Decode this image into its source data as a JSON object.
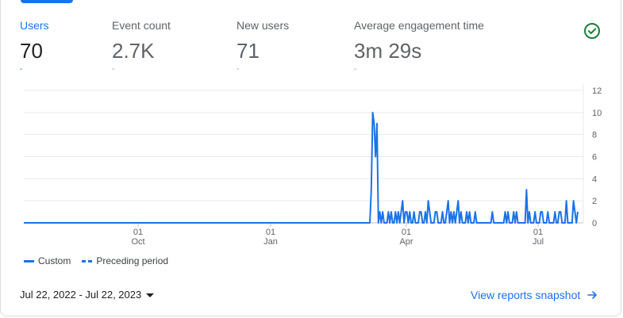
{
  "metrics": [
    {
      "label": "Users",
      "value": "70",
      "delta": "-"
    },
    {
      "label": "Event count",
      "value": "2.7K",
      "delta": "-"
    },
    {
      "label": "New users",
      "value": "71",
      "delta": "-"
    },
    {
      "label": "Average engagement time",
      "value": "3m 29s",
      "delta": "-"
    }
  ],
  "status_icon": "check-circle-icon",
  "colors": {
    "accent": "#1a73e8",
    "check": "#188038",
    "grid": "#e8eaed",
    "axis": "#5f6368"
  },
  "legend": {
    "custom": "Custom",
    "preceding": "Preceding period"
  },
  "date_range": {
    "label": "Jul 22, 2022 - Jul 22, 2023"
  },
  "view_link": {
    "label": "View reports snapshot"
  },
  "chart_data": {
    "type": "line",
    "x_ticks": [
      {
        "day": "01",
        "month": "Oct"
      },
      {
        "day": "01",
        "month": "Jan"
      },
      {
        "day": "01",
        "month": "Apr"
      },
      {
        "day": "01",
        "month": "Jul"
      }
    ],
    "y_ticks": [
      0,
      2,
      4,
      6,
      8,
      10,
      12
    ],
    "ylim": [
      0,
      12
    ],
    "grid": true,
    "series": [
      {
        "name": "Custom",
        "style": "solid",
        "values": [
          0,
          0,
          0,
          0,
          0,
          0,
          0,
          0,
          0,
          0,
          0,
          0,
          0,
          0,
          0,
          0,
          0,
          0,
          0,
          0,
          0,
          0,
          0,
          0,
          0,
          0,
          0,
          0,
          0,
          0,
          0,
          0,
          0,
          0,
          0,
          0,
          0,
          0,
          0,
          0,
          0,
          0,
          0,
          0,
          0,
          0,
          0,
          0,
          0,
          0,
          0,
          0,
          0,
          0,
          0,
          0,
          0,
          0,
          0,
          0,
          0,
          0,
          0,
          0,
          0,
          0,
          0,
          0,
          0,
          0,
          0,
          0,
          0,
          0,
          0,
          0,
          0,
          0,
          0,
          0,
          0,
          0,
          0,
          0,
          0,
          0,
          0,
          0,
          0,
          0,
          0,
          0,
          0,
          0,
          0,
          0,
          0,
          0,
          0,
          0,
          0,
          0,
          0,
          0,
          0,
          0,
          0,
          0,
          0,
          0,
          0,
          0,
          0,
          0,
          0,
          0,
          0,
          0,
          0,
          0,
          0,
          0,
          0,
          0,
          0,
          0,
          0,
          0,
          0,
          0,
          0,
          0,
          0,
          0,
          0,
          0,
          0,
          0,
          0,
          0,
          0,
          0,
          0,
          0,
          0,
          0,
          0,
          0,
          0,
          0,
          0,
          0,
          0,
          0,
          0,
          0,
          0,
          0,
          0,
          0,
          0,
          0,
          0,
          0,
          0,
          0,
          0,
          0,
          0,
          0,
          0,
          0,
          0,
          0,
          0,
          0,
          0,
          0,
          0,
          0,
          0,
          0,
          0,
          0,
          0,
          0,
          0,
          0,
          0,
          0,
          0,
          0,
          0,
          0,
          0,
          0,
          0,
          0,
          0,
          0,
          0,
          0,
          0,
          0,
          0,
          0,
          0,
          0,
          0,
          0,
          0,
          0,
          0,
          0,
          0,
          0,
          0,
          0,
          0,
          0,
          0,
          0,
          0,
          0,
          0,
          0,
          0,
          0,
          0,
          0,
          0,
          0,
          0,
          0,
          0,
          0,
          0,
          0,
          0,
          0,
          0,
          0,
          0,
          0,
          3,
          10,
          9,
          6,
          9,
          0,
          1,
          0,
          1,
          0,
          0,
          0,
          1,
          0,
          1,
          0,
          0,
          1,
          0,
          1,
          0,
          1,
          2,
          0,
          1,
          1,
          0,
          1,
          0,
          0,
          1,
          0,
          0,
          0,
          1,
          1,
          0,
          0,
          1,
          0,
          2,
          1,
          0,
          0,
          0,
          1,
          1,
          0,
          0,
          0,
          1,
          0,
          0,
          1,
          2,
          0,
          1,
          0,
          1,
          0,
          1,
          2,
          0,
          1,
          0,
          0,
          0,
          1,
          0,
          1,
          0,
          0,
          0,
          1,
          0,
          0,
          0,
          0,
          0,
          0,
          0,
          0,
          0,
          0,
          0,
          1,
          0,
          0,
          0,
          0,
          0,
          0,
          0,
          0,
          1,
          0,
          1,
          0,
          0,
          0,
          1,
          0,
          1,
          0,
          0,
          0,
          0,
          0,
          0,
          3,
          0,
          1,
          0,
          0,
          0,
          1,
          0,
          0,
          0,
          1,
          1,
          0,
          0,
          0,
          1,
          0,
          0,
          0,
          0,
          1,
          0,
          0,
          1,
          1,
          0,
          0,
          0,
          2,
          0,
          0,
          0,
          0,
          2,
          1,
          0,
          1
        ]
      },
      {
        "name": "Preceding period",
        "style": "dashed",
        "values": []
      }
    ]
  }
}
